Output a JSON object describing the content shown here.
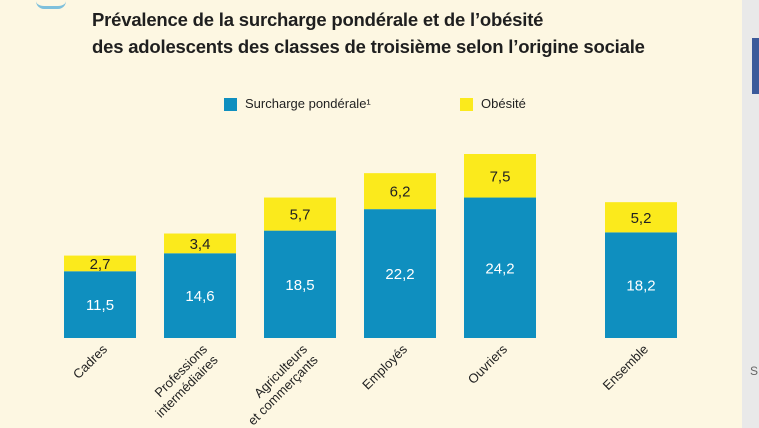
{
  "title_lines": [
    "Prévalence de la surcharge pondérale et de l’obésité",
    "des adolescents des classes de troisième selon l’origine sociale"
  ],
  "legend": {
    "surcharge_label": "Surcharge pondérale¹",
    "obesite_label": "Obésité"
  },
  "colors": {
    "surcharge": "#0f8fbf",
    "obesite": "#fbea1c",
    "panel_background": "#fdf7e2"
  },
  "right_edge_glyph": "S",
  "chart_data": {
    "type": "bar",
    "stacked": true,
    "categories": [
      "Cadres",
      "Professions intermédiaires",
      "Agriculteurs et commerçants",
      "Employés",
      "Ouvriers",
      "Ensemble"
    ],
    "category_label_lines": [
      [
        "Cadres"
      ],
      [
        "Professions",
        "intermédiaires"
      ],
      [
        "Agriculteurs",
        "et commerçants"
      ],
      [
        "Employés"
      ],
      [
        "Ouvriers"
      ],
      [
        "Ensemble"
      ]
    ],
    "series": [
      {
        "name": "Surcharge pondérale¹",
        "values": [
          11.5,
          14.6,
          18.5,
          22.2,
          24.2,
          18.2
        ],
        "labels": [
          "11,5",
          "14,6",
          "18,5",
          "22,2",
          "24,2",
          "18,2"
        ]
      },
      {
        "name": "Obésité",
        "values": [
          2.7,
          3.4,
          5.7,
          6.2,
          7.5,
          5.2
        ],
        "labels": [
          "2,7",
          "3,4",
          "5,7",
          "6,2",
          "7,5",
          "5,2"
        ]
      }
    ],
    "ylim": [
      0,
      32
    ],
    "grid": false,
    "legend_position": "top",
    "xlabel": "",
    "ylabel": ""
  }
}
